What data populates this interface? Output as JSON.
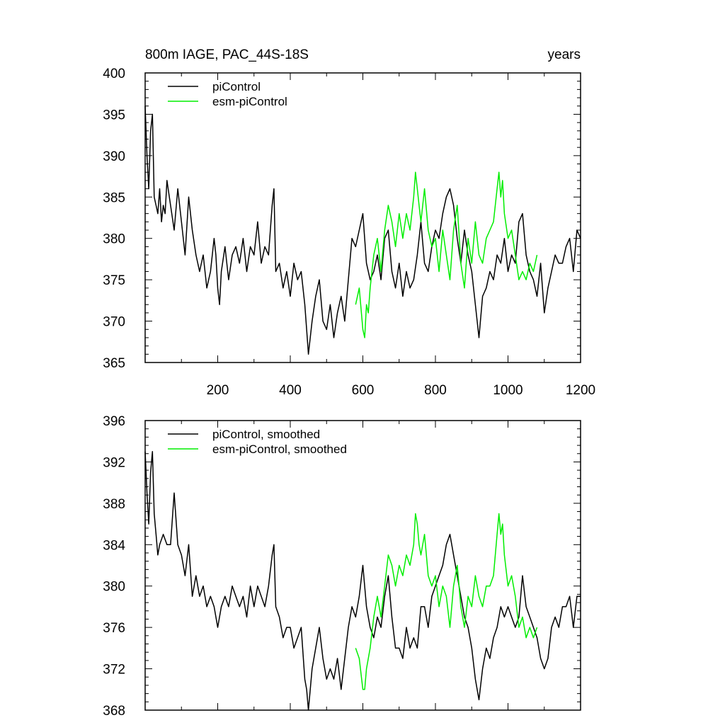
{
  "chart_data": [
    {
      "type": "line",
      "title": "800m IAGE, PAC_44S-18S",
      "title_right": "years",
      "xlim": [
        0,
        1200
      ],
      "ylim": [
        365,
        400
      ],
      "x_ticks": [
        200,
        400,
        600,
        800,
        1000,
        1200
      ],
      "y_ticks": [
        365,
        370,
        375,
        380,
        385,
        390,
        395,
        400
      ],
      "show_x_tick_labels": true,
      "legend_position": "top-left",
      "grid": false,
      "series": [
        {
          "name": "piControl",
          "color": "#000000",
          "x": [
            0,
            5,
            10,
            15,
            20,
            25,
            30,
            35,
            40,
            45,
            50,
            55,
            60,
            70,
            80,
            90,
            100,
            110,
            120,
            130,
            140,
            150,
            160,
            170,
            180,
            190,
            195,
            200,
            205,
            210,
            220,
            230,
            240,
            250,
            260,
            270,
            280,
            290,
            300,
            310,
            320,
            330,
            340,
            350,
            355,
            360,
            370,
            380,
            390,
            400,
            410,
            420,
            430,
            440,
            445,
            450,
            455,
            460,
            470,
            480,
            490,
            500,
            510,
            520,
            530,
            540,
            550,
            560,
            570,
            580,
            590,
            600,
            610,
            620,
            630,
            640,
            650,
            660,
            670,
            680,
            690,
            700,
            710,
            720,
            730,
            740,
            750,
            760,
            770,
            780,
            790,
            800,
            810,
            820,
            830,
            840,
            850,
            860,
            870,
            880,
            890,
            900,
            910,
            920,
            930,
            940,
            950,
            960,
            970,
            980,
            990,
            1000,
            1010,
            1020,
            1030,
            1040,
            1050,
            1060,
            1070,
            1080,
            1090,
            1100,
            1110,
            1120,
            1130,
            1140,
            1150,
            1160,
            1170,
            1180,
            1190,
            1200
          ],
          "values": [
            396,
            390,
            386,
            393,
            395,
            385,
            384,
            383,
            386,
            382,
            384,
            383,
            387,
            384,
            381,
            386,
            382,
            378,
            385,
            381,
            378,
            376,
            378,
            374,
            376,
            380,
            378,
            374,
            372,
            376,
            379,
            375,
            378,
            379,
            377,
            380,
            376,
            379,
            378,
            382,
            377,
            379,
            378,
            384,
            386,
            376,
            377,
            374,
            376,
            373,
            377,
            375,
            376,
            372,
            369,
            366,
            368,
            370,
            373,
            375,
            370,
            369,
            372,
            368,
            371,
            373,
            370,
            375,
            380,
            379,
            381,
            383,
            377,
            375,
            376,
            378,
            375,
            380,
            381,
            376,
            374,
            377,
            373,
            376,
            374,
            375,
            378,
            382,
            377,
            376,
            379,
            381,
            380,
            383,
            385,
            386,
            384,
            380,
            377,
            381,
            378,
            376,
            372,
            368,
            373,
            374,
            376,
            375,
            378,
            377,
            380,
            376,
            378,
            377,
            382,
            383,
            378,
            376,
            375,
            373,
            377,
            371,
            374,
            376,
            378,
            377,
            377,
            379,
            380,
            376,
            381,
            380
          ]
        },
        {
          "name": "esm-piControl",
          "color": "#00ee00",
          "x": [
            580,
            590,
            600,
            605,
            610,
            615,
            620,
            630,
            640,
            650,
            660,
            670,
            680,
            690,
            700,
            710,
            720,
            730,
            740,
            745,
            750,
            755,
            760,
            770,
            780,
            790,
            800,
            810,
            820,
            830,
            840,
            850,
            860,
            870,
            880,
            890,
            900,
            910,
            920,
            930,
            940,
            950,
            960,
            970,
            975,
            980,
            985,
            990,
            1000,
            1010,
            1020,
            1030,
            1040,
            1050,
            1060,
            1070,
            1080
          ],
          "values": [
            372,
            374,
            369,
            368,
            372,
            371,
            374,
            378,
            380,
            376,
            381,
            384,
            382,
            379,
            383,
            380,
            383,
            381,
            385,
            388,
            386,
            384,
            382,
            386,
            381,
            379,
            380,
            376,
            381,
            378,
            375,
            381,
            384,
            377,
            374,
            380,
            377,
            382,
            378,
            377,
            380,
            381,
            382,
            386,
            388,
            385,
            387,
            383,
            380,
            381,
            378,
            375,
            376,
            375,
            377,
            376,
            378
          ]
        }
      ]
    },
    {
      "type": "line",
      "title": "",
      "xlim": [
        0,
        1200
      ],
      "ylim": [
        368,
        396
      ],
      "x_ticks": [
        200,
        400,
        600,
        800,
        1000,
        1200
      ],
      "y_ticks": [
        368,
        372,
        376,
        380,
        384,
        388,
        392,
        396
      ],
      "show_x_tick_labels": false,
      "legend_position": "top-left",
      "grid": false,
      "series": [
        {
          "name": "piControl, smoothed",
          "color": "#000000",
          "x": [
            0,
            5,
            10,
            15,
            20,
            25,
            30,
            35,
            40,
            50,
            60,
            70,
            80,
            90,
            100,
            110,
            120,
            130,
            140,
            150,
            160,
            170,
            180,
            190,
            200,
            210,
            220,
            230,
            240,
            250,
            260,
            270,
            280,
            290,
            300,
            310,
            320,
            330,
            340,
            350,
            355,
            360,
            370,
            380,
            390,
            400,
            410,
            420,
            430,
            440,
            445,
            450,
            455,
            460,
            470,
            480,
            490,
            500,
            510,
            520,
            530,
            540,
            550,
            560,
            570,
            580,
            590,
            600,
            610,
            620,
            630,
            640,
            650,
            660,
            670,
            680,
            690,
            700,
            710,
            720,
            730,
            740,
            750,
            760,
            770,
            780,
            790,
            800,
            810,
            820,
            830,
            840,
            850,
            860,
            870,
            880,
            890,
            900,
            910,
            920,
            930,
            940,
            950,
            960,
            970,
            980,
            990,
            1000,
            1010,
            1020,
            1030,
            1040,
            1050,
            1060,
            1070,
            1080,
            1090,
            1100,
            1110,
            1120,
            1130,
            1140,
            1150,
            1160,
            1170,
            1180,
            1190,
            1200
          ],
          "values": [
            393,
            389,
            386,
            391,
            393,
            387,
            385,
            383,
            384,
            385,
            384,
            384,
            389,
            384,
            383,
            381,
            384,
            379,
            381,
            379,
            380,
            378,
            379,
            378,
            376,
            378,
            379,
            378,
            380,
            379,
            378,
            379,
            377,
            380,
            378,
            380,
            379,
            378,
            380,
            383,
            384,
            378,
            377,
            375,
            376,
            376,
            374,
            375,
            376,
            371,
            370,
            368,
            370,
            372,
            374,
            376,
            373,
            371,
            372,
            371,
            373,
            370,
            373,
            376,
            378,
            377,
            379,
            382,
            378,
            376,
            375,
            377,
            376,
            379,
            381,
            377,
            374,
            374,
            373,
            376,
            374,
            375,
            374,
            378,
            378,
            376,
            379,
            380,
            381,
            382,
            384,
            385,
            383,
            381,
            379,
            377,
            376,
            374,
            371,
            369,
            372,
            374,
            373,
            375,
            376,
            378,
            377,
            378,
            377,
            376,
            377,
            381,
            378,
            377,
            376,
            375,
            373,
            372,
            373,
            376,
            377,
            376,
            378,
            378,
            379,
            376,
            379,
            379
          ]
        },
        {
          "name": "esm-piControl, smoothed",
          "color": "#00ee00",
          "x": [
            580,
            590,
            600,
            605,
            610,
            615,
            620,
            630,
            640,
            650,
            660,
            670,
            680,
            690,
            700,
            710,
            720,
            730,
            740,
            745,
            750,
            755,
            760,
            770,
            780,
            790,
            800,
            810,
            820,
            830,
            840,
            850,
            860,
            870,
            880,
            890,
            900,
            910,
            920,
            930,
            940,
            950,
            960,
            970,
            975,
            980,
            985,
            990,
            1000,
            1010,
            1020,
            1030,
            1040,
            1050,
            1060,
            1070,
            1080
          ],
          "values": [
            374,
            373,
            370,
            370,
            372,
            373,
            374,
            377,
            379,
            377,
            380,
            383,
            382,
            380,
            382,
            381,
            383,
            382,
            384,
            387,
            386,
            384,
            383,
            385,
            381,
            380,
            381,
            378,
            380,
            379,
            376,
            380,
            382,
            378,
            376,
            379,
            378,
            381,
            379,
            378,
            380,
            380,
            381,
            385,
            387,
            385,
            386,
            383,
            380,
            381,
            379,
            376,
            377,
            375,
            376,
            375,
            376
          ]
        }
      ]
    }
  ]
}
